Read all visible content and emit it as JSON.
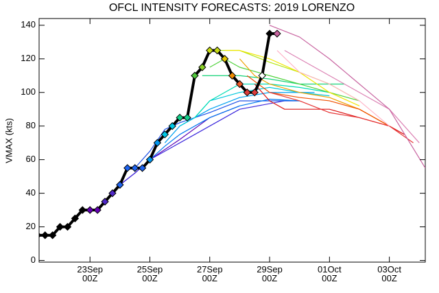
{
  "chart_data": {
    "type": "line",
    "title": "OFCL INTENSITY FORECASTS: 2019 LORENZO",
    "y_label": "VMAX (kts)",
    "xlim": [
      21.3,
      34.2
    ],
    "ylim": [
      -1,
      144
    ],
    "xticks": [
      {
        "value": 23,
        "label": "23Sep\n00Z"
      },
      {
        "value": 25,
        "label": "25Sep\n00Z"
      },
      {
        "value": 27,
        "label": "27Sep\n00Z"
      },
      {
        "value": 29,
        "label": "29Sep\n00Z"
      },
      {
        "value": 31,
        "label": "01Oct\n00Z"
      },
      {
        "value": 33,
        "label": "03Oct\n00Z"
      }
    ],
    "yticks": [
      0,
      20,
      40,
      60,
      80,
      100,
      120,
      140
    ],
    "series": [
      {
        "color": "#5a00b4",
        "x": [
          23.5,
          24,
          24.5,
          25,
          26,
          27,
          28
        ],
        "values": [
          35,
          45,
          52,
          60,
          72,
          85,
          92
        ]
      },
      {
        "color": "#3c28dc",
        "x": [
          24,
          24.5,
          25,
          26,
          27,
          28,
          29.5
        ],
        "values": [
          45,
          52,
          60,
          70,
          80,
          90,
          95
        ]
      },
      {
        "color": "#1e50e6",
        "x": [
          24.5,
          25,
          25.5,
          26,
          27,
          28,
          29,
          30
        ],
        "values": [
          55,
          65,
          78,
          82,
          88,
          95,
          95,
          95
        ]
      },
      {
        "color": "#0078f0",
        "x": [
          25,
          25.5,
          26,
          27,
          28,
          29,
          30
        ],
        "values": [
          60,
          68,
          75,
          85,
          92,
          96,
          95
        ]
      },
      {
        "color": "#00a0f0",
        "x": [
          25.5,
          26,
          27,
          28,
          29,
          30,
          30.5
        ],
        "values": [
          70,
          80,
          90,
          97,
          100,
          100,
          100
        ]
      },
      {
        "color": "#00c8dc",
        "x": [
          26,
          26.5,
          27,
          28,
          29,
          30,
          31
        ],
        "values": [
          80,
          85,
          95,
          100,
          103,
          100,
          98
        ]
      },
      {
        "color": "#00dcb4",
        "x": [
          26.5,
          27,
          28,
          29,
          30,
          31
        ],
        "values": [
          85,
          95,
          105,
          105,
          103,
          100
        ]
      },
      {
        "color": "#14d278",
        "x": [
          26.75,
          27,
          28,
          29,
          30,
          31.5
        ],
        "values": [
          110,
          110,
          110,
          108,
          105,
          105
        ]
      },
      {
        "color": "#50d23c",
        "x": [
          27,
          27.5,
          28,
          29,
          30,
          31,
          32
        ],
        "values": [
          115,
          120,
          115,
          110,
          105,
          100,
          95
        ]
      },
      {
        "color": "#b4e614",
        "x": [
          27.25,
          28,
          29,
          30,
          31,
          32
        ],
        "values": [
          125,
          125,
          118,
          112,
          105,
          95
        ]
      },
      {
        "color": "#f0e600",
        "x": [
          27.5,
          28,
          29,
          30,
          31,
          32
        ],
        "values": [
          125,
          125,
          120,
          112,
          100,
          92
        ]
      },
      {
        "color": "#f0a000",
        "x": [
          28,
          28.5,
          29,
          30,
          31,
          32,
          33
        ],
        "values": [
          120,
          110,
          105,
          100,
          97,
          90,
          80
        ]
      },
      {
        "color": "#f05000",
        "x": [
          28.25,
          29,
          30,
          31,
          32,
          33
        ],
        "values": [
          110,
          100,
          97,
          95,
          90,
          80
        ]
      },
      {
        "color": "#dc1414",
        "x": [
          28.5,
          29,
          29.5,
          31,
          32,
          33,
          33.5
        ],
        "values": [
          105,
          95,
          90,
          90,
          85,
          80,
          75
        ]
      },
      {
        "color": "#e63232",
        "x": [
          29,
          30,
          31,
          32,
          33,
          33.8
        ],
        "values": [
          100,
          95,
          88,
          85,
          80,
          70
        ]
      },
      {
        "color": "#ffb4c8",
        "x": [
          29.25,
          30,
          31,
          32,
          33
        ],
        "values": [
          125,
          112,
          105,
          95,
          80
        ]
      },
      {
        "color": "#dc82b4",
        "x": [
          29.5,
          30,
          31,
          32,
          33,
          34
        ],
        "values": [
          125,
          120,
          110,
          100,
          90,
          70
        ]
      },
      {
        "color": "#c864a0",
        "x": [
          29,
          30,
          31,
          32,
          33,
          34.2
        ],
        "values": [
          140,
          133,
          120,
          105,
          90,
          55
        ]
      },
      {
        "color": "#000000",
        "track": true,
        "x": [
          21.25,
          21.5,
          21.75,
          22,
          22.25,
          22.5,
          22.75,
          23,
          23.25,
          23.5,
          23.75,
          24,
          24.25,
          24.5,
          24.75,
          25,
          25.25,
          25.5,
          25.75,
          26,
          26.25,
          26.5,
          26.75,
          27,
          27.25,
          27.5,
          27.75,
          28,
          28.25,
          28.5,
          28.75,
          29,
          29.25
        ],
        "values": [
          15,
          15,
          15,
          20,
          20,
          25,
          30,
          30,
          30,
          35,
          40,
          45,
          55,
          55,
          55,
          60,
          70,
          75,
          80,
          85,
          85,
          110,
          115,
          125,
          125,
          120,
          110,
          105,
          100,
          100,
          110,
          135,
          135
        ],
        "marker_colors": [
          "#000000",
          "#000000",
          "#000000",
          "#000000",
          "#000000",
          "#000000",
          "#000000",
          "#6400b4",
          "#6400b4",
          "#5028c8",
          "#5028c8",
          "#1e64f0",
          "#1e64f0",
          "#1e64f0",
          "#1e64f0",
          "#0096f0",
          "#0096f0",
          "#00c8e6",
          "#00c8e6",
          "#14d28c",
          "#14d28c",
          "#50c83c",
          "#8cd228",
          "#c8dc14",
          "#c8dc14",
          "#e6c800",
          "#f08c00",
          "#f05a28",
          "#dc3c3c",
          "#dc3c3c",
          "#ffffff",
          "#000000",
          "#c864a0"
        ]
      }
    ]
  }
}
